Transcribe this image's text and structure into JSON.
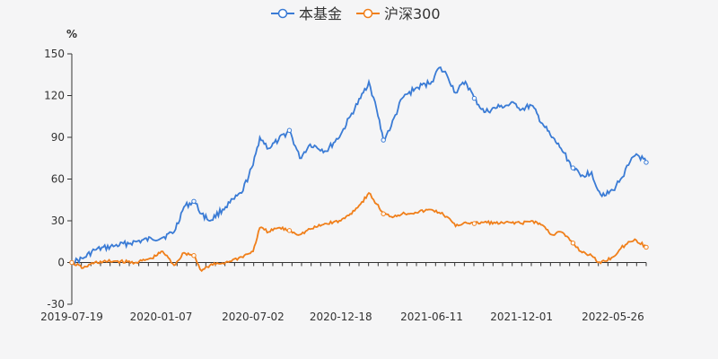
{
  "chart_data": {
    "type": "line",
    "y_unit": "%",
    "ylim": [
      -30,
      150
    ],
    "y_ticks": [
      -30,
      0,
      30,
      60,
      90,
      120,
      150
    ],
    "x_tick_labels": [
      "2019-07-19",
      "2020-01-07",
      "2020-07-02",
      "2020-12-18",
      "2021-06-11",
      "2021-12-01",
      "2022-05-26"
    ],
    "x_range": [
      "2019-07-19",
      "2022-07-29"
    ],
    "legend_position": "top-center",
    "grid": false,
    "series": [
      {
        "name": "本基金",
        "color": "#3a7bd5",
        "points": [
          [
            "2019-07-19",
            0
          ],
          [
            "2019-08-10",
            3
          ],
          [
            "2019-09-01",
            9
          ],
          [
            "2019-10-10",
            12
          ],
          [
            "2019-11-20",
            15
          ],
          [
            "2019-12-20",
            17
          ],
          [
            "2020-01-10",
            18
          ],
          [
            "2020-02-01",
            22
          ],
          [
            "2020-02-20",
            40
          ],
          [
            "2020-03-10",
            44
          ],
          [
            "2020-03-25",
            35
          ],
          [
            "2020-04-10",
            30
          ],
          [
            "2020-05-10",
            40
          ],
          [
            "2020-06-10",
            50
          ],
          [
            "2020-07-02",
            70
          ],
          [
            "2020-07-15",
            90
          ],
          [
            "2020-08-01",
            82
          ],
          [
            "2020-08-20",
            88
          ],
          [
            "2020-09-10",
            95
          ],
          [
            "2020-09-30",
            75
          ],
          [
            "2020-10-20",
            85
          ],
          [
            "2020-11-20",
            80
          ],
          [
            "2020-12-18",
            92
          ],
          [
            "2021-01-05",
            105
          ],
          [
            "2021-01-25",
            118
          ],
          [
            "2021-02-10",
            130
          ],
          [
            "2021-02-25",
            110
          ],
          [
            "2021-03-10",
            88
          ],
          [
            "2021-03-25",
            98
          ],
          [
            "2021-04-15",
            118
          ],
          [
            "2021-05-10",
            125
          ],
          [
            "2021-06-11",
            130
          ],
          [
            "2021-06-25",
            140
          ],
          [
            "2021-07-10",
            135
          ],
          [
            "2021-07-27",
            122
          ],
          [
            "2021-08-15",
            130
          ],
          [
            "2021-09-01",
            118
          ],
          [
            "2021-09-20",
            108
          ],
          [
            "2021-10-20",
            112
          ],
          [
            "2021-11-20",
            114
          ],
          [
            "2021-12-01",
            110
          ],
          [
            "2021-12-20",
            113
          ],
          [
            "2022-01-10",
            100
          ],
          [
            "2022-01-28",
            90
          ],
          [
            "2022-02-15",
            82
          ],
          [
            "2022-03-10",
            68
          ],
          [
            "2022-03-25",
            62
          ],
          [
            "2022-04-15",
            65
          ],
          [
            "2022-04-27",
            52
          ],
          [
            "2022-05-10",
            48
          ],
          [
            "2022-05-26",
            52
          ],
          [
            "2022-06-10",
            60
          ],
          [
            "2022-06-25",
            70
          ],
          [
            "2022-07-10",
            78
          ],
          [
            "2022-07-29",
            72
          ]
        ]
      },
      {
        "name": "沪深300",
        "color": "#f07f1a",
        "points": [
          [
            "2019-07-19",
            0
          ],
          [
            "2019-08-10",
            -4
          ],
          [
            "2019-09-01",
            0
          ],
          [
            "2019-10-10",
            1
          ],
          [
            "2019-11-20",
            0
          ],
          [
            "2019-12-20",
            3
          ],
          [
            "2020-01-10",
            8
          ],
          [
            "2020-02-01",
            -2
          ],
          [
            "2020-02-20",
            7
          ],
          [
            "2020-03-10",
            5
          ],
          [
            "2020-03-25",
            -6
          ],
          [
            "2020-04-10",
            -2
          ],
          [
            "2020-05-10",
            0
          ],
          [
            "2020-06-10",
            4
          ],
          [
            "2020-07-02",
            8
          ],
          [
            "2020-07-15",
            25
          ],
          [
            "2020-08-01",
            22
          ],
          [
            "2020-08-20",
            25
          ],
          [
            "2020-09-10",
            23
          ],
          [
            "2020-09-30",
            20
          ],
          [
            "2020-10-20",
            24
          ],
          [
            "2020-11-20",
            28
          ],
          [
            "2020-12-18",
            30
          ],
          [
            "2021-01-05",
            35
          ],
          [
            "2021-01-25",
            42
          ],
          [
            "2021-02-10",
            50
          ],
          [
            "2021-02-25",
            42
          ],
          [
            "2021-03-10",
            35
          ],
          [
            "2021-03-25",
            33
          ],
          [
            "2021-04-15",
            35
          ],
          [
            "2021-05-10",
            36
          ],
          [
            "2021-06-11",
            38
          ],
          [
            "2021-06-25",
            36
          ],
          [
            "2021-07-10",
            33
          ],
          [
            "2021-07-27",
            26
          ],
          [
            "2021-08-15",
            29
          ],
          [
            "2021-09-01",
            28
          ],
          [
            "2021-09-20",
            29
          ],
          [
            "2021-10-20",
            28
          ],
          [
            "2021-11-20",
            29
          ],
          [
            "2021-12-01",
            28
          ],
          [
            "2021-12-20",
            30
          ],
          [
            "2022-01-10",
            27
          ],
          [
            "2022-01-28",
            20
          ],
          [
            "2022-02-15",
            22
          ],
          [
            "2022-03-10",
            14
          ],
          [
            "2022-03-25",
            8
          ],
          [
            "2022-04-15",
            5
          ],
          [
            "2022-04-27",
            0
          ],
          [
            "2022-05-10",
            1
          ],
          [
            "2022-05-26",
            4
          ],
          [
            "2022-06-10",
            10
          ],
          [
            "2022-06-25",
            15
          ],
          [
            "2022-07-10",
            16
          ],
          [
            "2022-07-29",
            11
          ]
        ]
      }
    ]
  }
}
